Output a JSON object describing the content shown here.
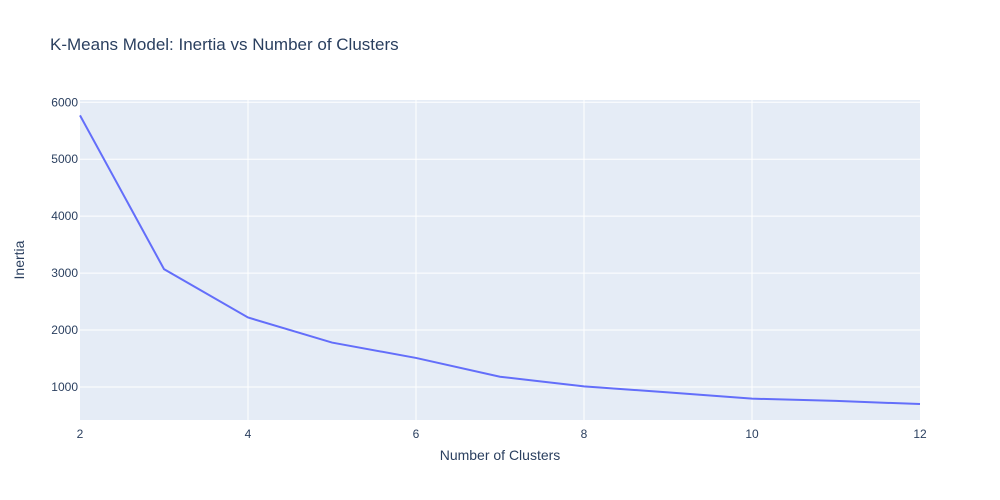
{
  "chart_data": {
    "type": "line",
    "title": "K-Means Model: Inertia vs Number of Clusters",
    "xlabel": "Number of Clusters",
    "ylabel": "Inertia",
    "x": [
      2,
      3,
      4,
      5,
      6,
      7,
      8,
      9,
      10,
      11,
      12
    ],
    "series": [
      {
        "values": [
          5770,
          3070,
          2220,
          1780,
          1510,
          1180,
          1010,
          905,
          795,
          755,
          700
        ]
      }
    ],
    "xlim": [
      2,
      12
    ],
    "ylim": [
      420,
      6040
    ],
    "xticks": [
      2,
      4,
      6,
      8,
      10,
      12
    ],
    "yticks": [
      1000,
      2000,
      3000,
      4000,
      5000,
      6000
    ],
    "xtick_labels": [
      "2",
      "4",
      "6",
      "8",
      "10",
      "12"
    ],
    "ytick_labels": [
      "1000",
      "2000",
      "3000",
      "4000",
      "5000",
      "6000"
    ],
    "grid": true,
    "legend": "none",
    "colors": {
      "plot_background": "#e5ecf6",
      "grid": "#ffffff",
      "line": "#636efa",
      "text": "#2a3f5f"
    }
  }
}
